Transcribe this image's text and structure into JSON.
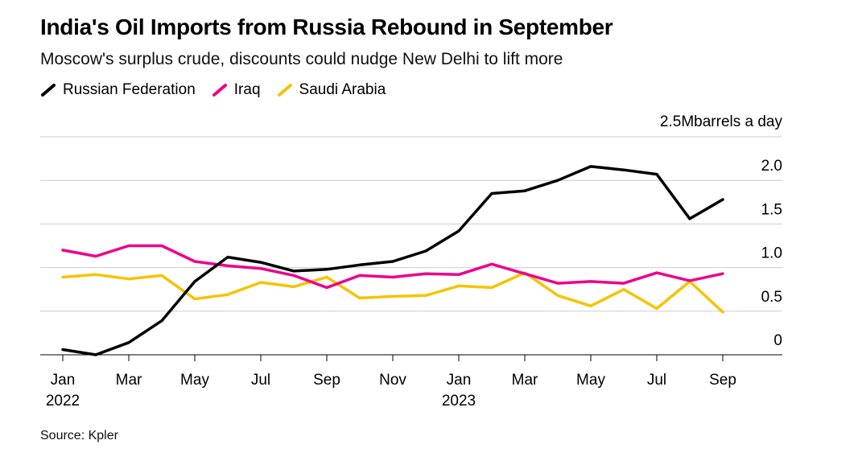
{
  "header": {
    "title": "India's Oil Imports from Russia Rebound in September",
    "subtitle": "Moscow's surplus crude, discounts could nudge New Delhi to lift more"
  },
  "source": "Source: Kpler",
  "chart_data": {
    "type": "line",
    "unit_label": "barrels a day",
    "y_top_label": "2.5M",
    "ylim": [
      0,
      2.5
    ],
    "y_ticks": [
      "2.0",
      "1.5",
      "1.0",
      "0.5",
      "0"
    ],
    "y_tick_values": [
      2.0,
      1.5,
      1.0,
      0.5,
      0
    ],
    "grid": true,
    "legend_position": "top-left",
    "x": [
      "Jan 2022",
      "Feb 2022",
      "Mar 2022",
      "Apr 2022",
      "May 2022",
      "Jun 2022",
      "Jul 2022",
      "Aug 2022",
      "Sep 2022",
      "Oct 2022",
      "Nov 2022",
      "Dec 2022",
      "Jan 2023",
      "Feb 2023",
      "Mar 2023",
      "Apr 2023",
      "May 2023",
      "Jun 2023",
      "Jul 2023",
      "Aug 2023",
      "Sep 2023"
    ],
    "x_tick_labels": [
      {
        "index": 0,
        "label": "Jan",
        "sub": "2022"
      },
      {
        "index": 2,
        "label": "Mar",
        "sub": ""
      },
      {
        "index": 4,
        "label": "May",
        "sub": ""
      },
      {
        "index": 6,
        "label": "Jul",
        "sub": ""
      },
      {
        "index": 8,
        "label": "Sep",
        "sub": ""
      },
      {
        "index": 10,
        "label": "Nov",
        "sub": ""
      },
      {
        "index": 12,
        "label": "Jan",
        "sub": "2023"
      },
      {
        "index": 14,
        "label": "Mar",
        "sub": ""
      },
      {
        "index": 16,
        "label": "May",
        "sub": ""
      },
      {
        "index": 18,
        "label": "Jul",
        "sub": ""
      },
      {
        "index": 20,
        "label": "Sep",
        "sub": ""
      }
    ],
    "series": [
      {
        "name": "Russian Federation",
        "color": "#000000",
        "values": [
          0.06,
          0.0,
          0.14,
          0.39,
          0.84,
          1.12,
          1.06,
          0.96,
          0.98,
          1.03,
          1.07,
          1.19,
          1.42,
          1.85,
          1.88,
          2.0,
          2.16,
          2.12,
          2.07,
          1.56,
          1.78
        ]
      },
      {
        "name": "Iraq",
        "color": "#ec008c",
        "values": [
          1.2,
          1.13,
          1.25,
          1.25,
          1.07,
          1.02,
          0.99,
          0.91,
          0.77,
          0.91,
          0.89,
          0.93,
          0.92,
          1.04,
          0.93,
          0.82,
          0.84,
          0.82,
          0.94,
          0.85,
          0.93
        ]
      },
      {
        "name": "Saudi Arabia",
        "color": "#f5c400",
        "values": [
          0.89,
          0.92,
          0.87,
          0.91,
          0.64,
          0.69,
          0.83,
          0.78,
          0.89,
          0.65,
          0.67,
          0.68,
          0.79,
          0.77,
          0.94,
          0.68,
          0.56,
          0.75,
          0.53,
          0.84,
          0.49
        ]
      }
    ]
  }
}
